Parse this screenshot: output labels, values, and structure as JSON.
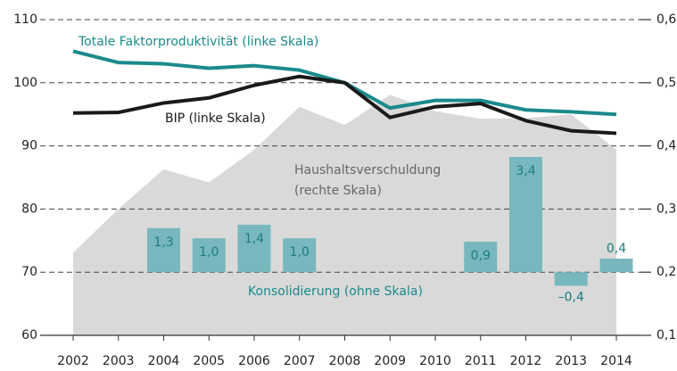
{
  "chart_data": {
    "type": "combo",
    "x": [
      "2002",
      "2003",
      "2004",
      "2005",
      "2006",
      "2007",
      "2008",
      "2009",
      "2010",
      "2011",
      "2012",
      "2013",
      "2014"
    ],
    "ylim": [
      60,
      110
    ],
    "yticks": [
      60,
      70,
      80,
      90,
      100,
      110
    ],
    "y2lim": [
      0.1,
      0.6
    ],
    "y2ticks": [
      {
        "value": 0.1,
        "label": "0,1"
      },
      {
        "value": 0.2,
        "label": "0,2"
      },
      {
        "value": 0.3,
        "label": "0,3"
      },
      {
        "value": 0.4,
        "label": "0,4"
      },
      {
        "value": 0.5,
        "label": "0,5"
      },
      {
        "value": 0.6,
        "label": "0,6"
      }
    ],
    "grid": true,
    "series": [
      {
        "name": "Haushaltsverschuldung",
        "type": "area",
        "axis": "y2",
        "color": "#d9d9d9",
        "values": [
          0.231,
          0.3,
          0.363,
          0.342,
          0.394,
          0.462,
          0.433,
          0.481,
          0.455,
          0.443,
          0.444,
          0.45,
          0.394
        ]
      },
      {
        "name": "Konsolidierung (ohne Skala)",
        "type": "bar",
        "color": "#78b7bd",
        "values": [
          null,
          null,
          1.3,
          1.0,
          1.4,
          1.0,
          null,
          null,
          null,
          0.9,
          3.4,
          -0.4,
          0.4
        ],
        "value_labels": [
          null,
          null,
          "1,3",
          "1,0",
          "1,4",
          "1,0",
          null,
          null,
          null,
          "0,9",
          "3,4",
          "–0,4",
          "0,4"
        ]
      },
      {
        "name": "Totale Faktorproduktivität (linke Skala)",
        "type": "line",
        "color": "#1b8a8c",
        "values": [
          105,
          103.2,
          103,
          102.3,
          102.7,
          102,
          100,
          96,
          97.2,
          97.2,
          95.7,
          95.4,
          95
        ]
      },
      {
        "name": "BIP (linke Skala)",
        "type": "line",
        "color": "#1a1a1a",
        "values": [
          95.2,
          95.3,
          96.8,
          97.6,
          99.6,
          101,
          100,
          94.5,
          96.2,
          96.7,
          94,
          92.4,
          92
        ]
      }
    ],
    "annotations": [
      "(rechte Skala)"
    ]
  }
}
